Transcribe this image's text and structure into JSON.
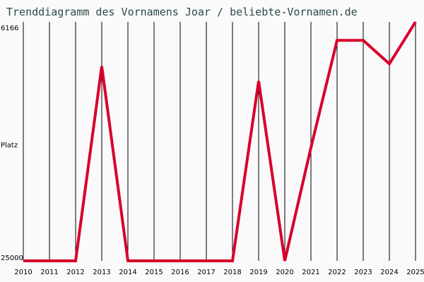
{
  "title": "Trenddiagramm des Vornamens Joar / beliebte-Vornamen.de",
  "y_axis": {
    "label": "Platz",
    "top_tick": "6166",
    "bottom_tick": "25000"
  },
  "colors": {
    "line": "#d8002a",
    "grid": "#000000",
    "background": "#fafafa",
    "title": "#2a4a4a"
  },
  "chart_data": {
    "type": "line",
    "title": "Trenddiagramm des Vornamens Joar / beliebte-Vornamen.de",
    "xlabel": "",
    "ylabel": "Platz",
    "y_inverted": true,
    "ylim": [
      25000,
      6166
    ],
    "grid": true,
    "categories": [
      "2010",
      "2011",
      "2012",
      "2013",
      "2014",
      "2015",
      "2016",
      "2017",
      "2018",
      "2019",
      "2020",
      "2021",
      "2022",
      "2023",
      "2024",
      "2025"
    ],
    "series": [
      {
        "name": "Joar",
        "values": [
          25000,
          25000,
          25000,
          9200,
          25000,
          25000,
          25000,
          25000,
          25000,
          10400,
          25000,
          15800,
          7100,
          7100,
          9000,
          5600
        ]
      }
    ]
  }
}
